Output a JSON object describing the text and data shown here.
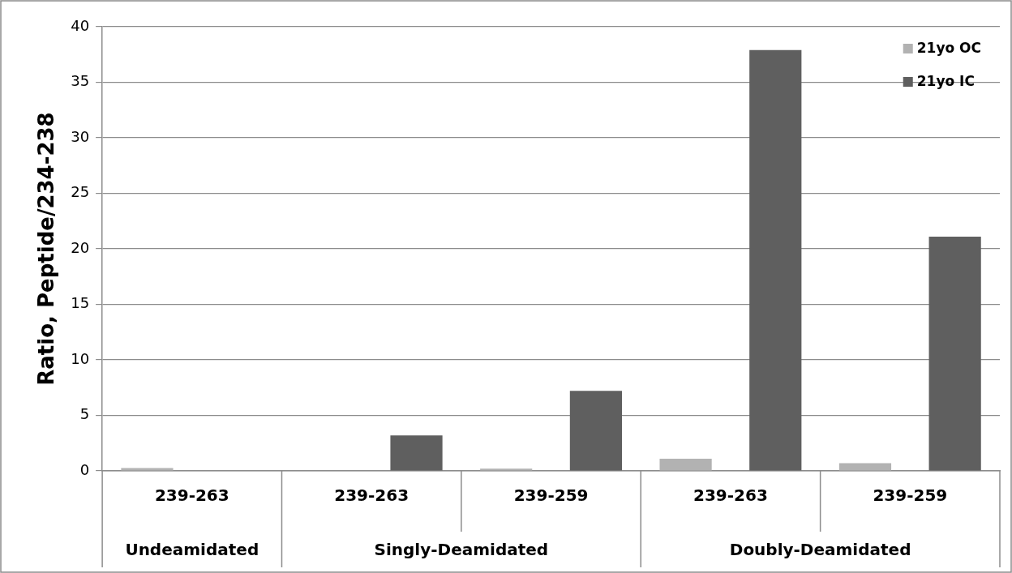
{
  "chart_data": {
    "type": "bar",
    "ylabel": "Ratio, Peptide/234-238",
    "categories": [
      "239-263",
      "239-263",
      "239-259",
      "239-263",
      "239-259"
    ],
    "series": [
      {
        "name": "21yo OC",
        "color": "#b2b2b2",
        "values": [
          0.25,
          0,
          0.2,
          1.1,
          0.7
        ]
      },
      {
        "name": "21yo IC",
        "color": "#5f5f5f",
        "values": [
          0,
          3.2,
          7.2,
          37.9,
          21.1
        ]
      }
    ],
    "ylim": [
      0,
      40
    ],
    "yticks": [
      0,
      5,
      10,
      15,
      20,
      25,
      30,
      35,
      40
    ],
    "grid": "y",
    "legend": "top right",
    "annotations": [
      "Undeamidated",
      "Singly-Deamidated",
      "Doubly-Deamidated"
    ]
  }
}
